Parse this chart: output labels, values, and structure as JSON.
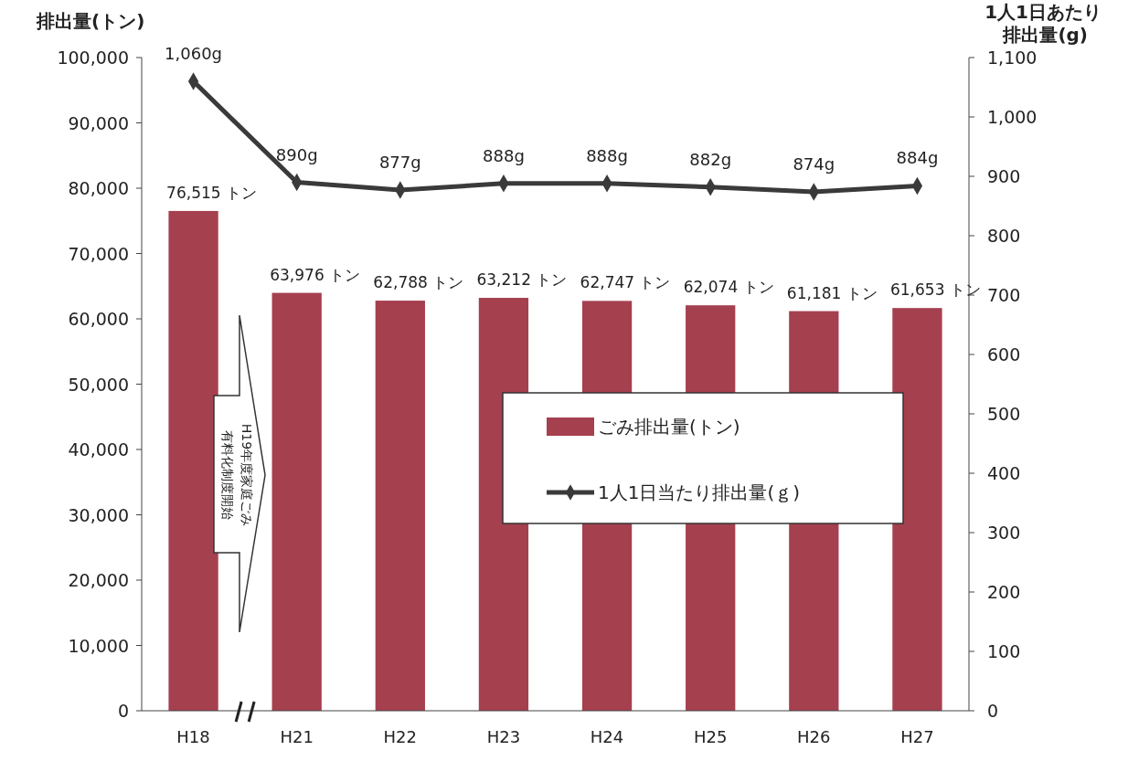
{
  "chart_data": {
    "type": "bar",
    "ylabel": "排出量(トン)",
    "y2label": "1人1日あたり排出量(g)",
    "categories": [
      "H18",
      "H21",
      "H22",
      "H23",
      "H24",
      "H25",
      "H26",
      "H27"
    ],
    "series": [
      {
        "name": "ごみ排出量(トン)",
        "color": "#a5404f",
        "values": [
          76515,
          63976,
          62788,
          63212,
          62747,
          62074,
          61181,
          61653
        ],
        "value_labels": [
          "76,515 トン",
          "63,976 トン",
          "62,788 トン",
          "63,212 トン",
          "62,747 トン",
          "62,074 トン",
          "61,181 トン",
          "61,653 トン"
        ]
      },
      {
        "name": "1人1日当たり排出量(ｇ)",
        "type": "line",
        "axis": "y2",
        "color": "#3a3a3a",
        "marker": "diamond",
        "values": [
          1060,
          890,
          877,
          888,
          888,
          882,
          874,
          884
        ],
        "value_labels": [
          "1,060g",
          "890g",
          "877g",
          "888g",
          "888g",
          "882g",
          "874g",
          "884g"
        ]
      }
    ],
    "ylim": [
      0,
      100000
    ],
    "yticks": [
      0,
      {
        "value": 10000,
        "label": "10,000"
      },
      {
        "value": 20000,
        "label": "20,000"
      },
      {
        "value": 30000,
        "label": "30,000"
      },
      {
        "value": 40000,
        "label": "40,000"
      },
      {
        "value": 50000,
        "label": "50,000"
      },
      {
        "value": 60000,
        "label": "60,000"
      },
      {
        "value": 70000,
        "label": "70,000"
      },
      {
        "value": 80000,
        "label": "80,000"
      },
      {
        "value": 90000,
        "label": "90,000"
      },
      {
        "value": 100000,
        "label": "100,000"
      }
    ],
    "y2lim": [
      0,
      1100
    ],
    "y2ticks": [
      0,
      100,
      200,
      300,
      400,
      500,
      600,
      700,
      800,
      900,
      {
        "value": 1000,
        "label": "1,000"
      },
      {
        "value": 1100,
        "label": "1,100"
      }
    ],
    "legend": "right",
    "grid": false,
    "annotations": [
      "H19年度家庭ごみ",
      "有料化制度開始"
    ]
  }
}
